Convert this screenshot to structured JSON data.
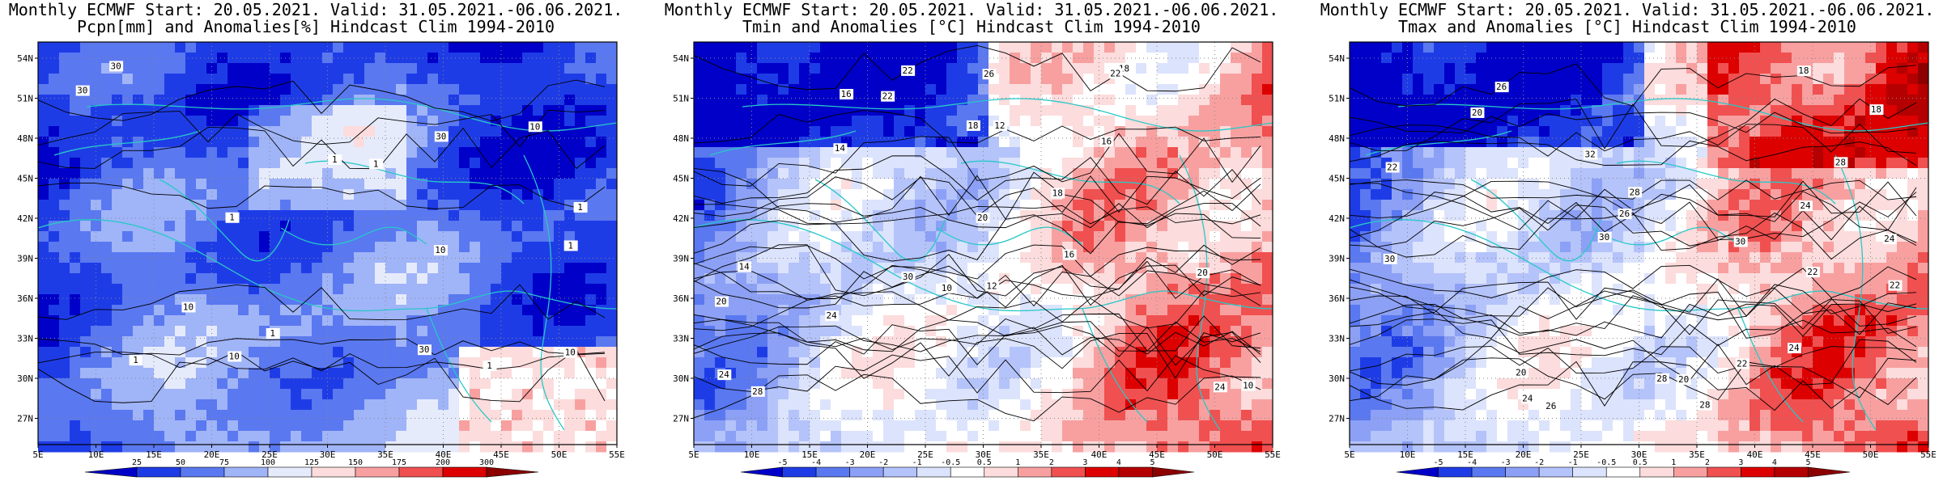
{
  "panels": [
    {
      "title_line1": "Monthly ECMWF Start: 20.05.2021. Valid: 31.05.2021.-06.06.2021.",
      "title_line2": "Pcpn[mm] and Anomalies[%] Hindcast Clim 1994-2010",
      "variable": "precipitation",
      "lat_labels": [
        "54N",
        "51N",
        "48N",
        "45N",
        "42N",
        "39N",
        "36N",
        "33N",
        "30N",
        "27N"
      ],
      "lon_labels": [
        "5E",
        "10E",
        "15E",
        "20E",
        "25E",
        "30E",
        "35E",
        "40E",
        "45E",
        "50E",
        "55E"
      ],
      "colorbar_labels": [
        "25",
        "50",
        "75",
        "100",
        "125",
        "150",
        "175",
        "200",
        "300"
      ],
      "colorbar_colors": [
        "#0000c8",
        "#1e3ce6",
        "#5a78f0",
        "#a0b4f8",
        "#e6ebfc",
        "#fcdcdc",
        "#f8a0a0",
        "#f05050",
        "#dc0000",
        "#8c0000"
      ],
      "contour_labels": [
        "30",
        "30",
        "30",
        "10",
        "10",
        "10",
        "1",
        "1",
        "1",
        "1",
        "10",
        "30",
        "1",
        "1",
        "1",
        "1",
        "10"
      ]
    },
    {
      "title_line1": "Monthly ECMWF Start: 20.05.2021. Valid: 31.05.2021.-06.06.2021.",
      "title_line2": "Tmin and Anomalies [°C] Hindcast Clim 1994-2010",
      "variable": "tmin",
      "lat_labels": [
        "54N",
        "51N",
        "48N",
        "45N",
        "42N",
        "39N",
        "36N",
        "33N",
        "30N",
        "27N"
      ],
      "lon_labels": [
        "5E",
        "10E",
        "15E",
        "20E",
        "25E",
        "30E",
        "35E",
        "40E",
        "45E",
        "50E",
        "55E"
      ],
      "colorbar_labels": [
        "-5",
        "-4",
        "-3",
        "-2",
        "-1",
        "-0.5",
        "0.5",
        "1",
        "2",
        "3",
        "4",
        "5"
      ],
      "colorbar_colors": [
        "#0000c8",
        "#1e3ce6",
        "#5a78f0",
        "#8ca0f5",
        "#b4c3fa",
        "#dce3fc",
        "#ffffff",
        "#fcdcdc",
        "#f8a0a0",
        "#f05050",
        "#dc0000",
        "#b40000",
        "#8c0000"
      ],
      "contour_labels": [
        "10",
        "10",
        "12",
        "14",
        "16",
        "18",
        "20",
        "22",
        "24",
        "16",
        "18",
        "14",
        "12",
        "20",
        "22",
        "24",
        "26",
        "30",
        "16",
        "18",
        "20",
        "22",
        "24",
        "28"
      ]
    },
    {
      "title_line1": "Monthly ECMWF Start: 20.05.2021. Valid: 31.05.2021.-06.06.2021.",
      "title_line2": "Tmax and Anomalies [°C] Hindcast Clim 1994-2010",
      "variable": "tmax",
      "lat_labels": [
        "54N",
        "51N",
        "48N",
        "45N",
        "42N",
        "39N",
        "36N",
        "33N",
        "30N",
        "27N"
      ],
      "lon_labels": [
        "5E",
        "10E",
        "15E",
        "20E",
        "25E",
        "30E",
        "35E",
        "40E",
        "45E",
        "50E",
        "55E"
      ],
      "colorbar_labels": [
        "-5",
        "-4",
        "-3",
        "-2",
        "-1",
        "-0.5",
        "0.5",
        "1",
        "2",
        "3",
        "4",
        "5"
      ],
      "colorbar_colors": [
        "#0000c8",
        "#1e3ce6",
        "#5a78f0",
        "#8ca0f5",
        "#b4c3fa",
        "#dce3fc",
        "#ffffff",
        "#fcdcdc",
        "#f8a0a0",
        "#f05050",
        "#dc0000",
        "#b40000",
        "#8c0000"
      ],
      "contour_labels": [
        "18",
        "18",
        "20",
        "22",
        "24",
        "26",
        "28",
        "30",
        "20",
        "22",
        "24",
        "26",
        "28",
        "30",
        "32",
        "22",
        "24",
        "26",
        "28",
        "30",
        "20",
        "22",
        "24",
        "28"
      ]
    }
  ]
}
